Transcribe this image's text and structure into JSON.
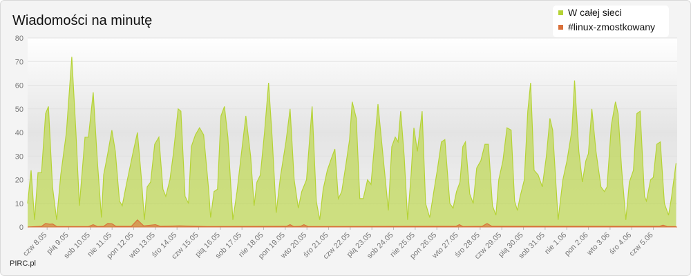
{
  "chart_data": {
    "type": "area",
    "title": "Wiadomości na minutę",
    "source": "PIRC.pl",
    "xlim": [
      0.1,
      30.1
    ],
    "xticks": [
      {
        "value": 1,
        "label": "czw 8.05"
      },
      {
        "value": 2,
        "label": "pią 9.05"
      },
      {
        "value": 3,
        "label": "sob 10.05"
      },
      {
        "value": 4,
        "label": "nie 11.05"
      },
      {
        "value": 5,
        "label": "pon 12.05"
      },
      {
        "value": 6,
        "label": "wto 13.05"
      },
      {
        "value": 7,
        "label": "śro 14.05"
      },
      {
        "value": 8,
        "label": "czw 15.05"
      },
      {
        "value": 9,
        "label": "pią 16.05"
      },
      {
        "value": 10,
        "label": "sob 17.05"
      },
      {
        "value": 11,
        "label": "nie 18.05"
      },
      {
        "value": 12,
        "label": "pon 19.05"
      },
      {
        "value": 13,
        "label": "wto 20.05"
      },
      {
        "value": 14,
        "label": "śro 21.05"
      },
      {
        "value": 15,
        "label": "czw 22.05"
      },
      {
        "value": 16,
        "label": "pią 23.05"
      },
      {
        "value": 17,
        "label": "sob 24.05"
      },
      {
        "value": 18,
        "label": "nie 25.05"
      },
      {
        "value": 19,
        "label": "pon 26.05"
      },
      {
        "value": 20,
        "label": "wto 27.05"
      },
      {
        "value": 21,
        "label": "śro 28.05"
      },
      {
        "value": 22,
        "label": "czw 29.05"
      },
      {
        "value": 23,
        "label": "pią 30.05"
      },
      {
        "value": 24,
        "label": "sob 31.05"
      },
      {
        "value": 25,
        "label": "nie 1.06"
      },
      {
        "value": 26,
        "label": "pon 2.06"
      },
      {
        "value": 27,
        "label": "wto 3.06"
      },
      {
        "value": 28,
        "label": "śro 4.06"
      },
      {
        "value": 29,
        "label": "czw 5.06"
      }
    ],
    "ylim": [
      0,
      80
    ],
    "yticks": [
      0,
      10,
      20,
      30,
      40,
      50,
      60,
      70,
      80
    ],
    "grid": true,
    "legend": "top-right",
    "series": [
      {
        "name": "W całej sieci",
        "color": "#b5d335",
        "x": [
          0.1,
          0.26,
          0.42,
          0.58,
          0.74,
          0.93,
          1.06,
          1.25,
          1.44,
          1.63,
          1.89,
          2.14,
          2.33,
          2.49,
          2.75,
          2.91,
          3.13,
          3.32,
          3.51,
          3.61,
          3.8,
          3.99,
          4.15,
          4.34,
          4.47,
          4.66,
          4.98,
          5.17,
          5.36,
          5.49,
          5.62,
          5.78,
          5.97,
          6.16,
          6.35,
          6.48,
          6.67,
          6.83,
          7.05,
          7.18,
          7.37,
          7.53,
          7.66,
          7.85,
          8.04,
          8.23,
          8.46,
          8.55,
          8.71,
          8.87,
          9.03,
          9.19,
          9.35,
          9.58,
          9.77,
          9.96,
          10.18,
          10.4,
          10.56,
          10.69,
          10.85,
          11.04,
          11.23,
          11.39,
          11.58,
          11.77,
          12.03,
          12.22,
          12.41,
          12.6,
          12.76,
          12.98,
          13.24,
          13.43,
          13.59,
          13.75,
          13.94,
          14.13,
          14.29,
          14.45,
          14.61,
          14.81,
          14.97,
          15.09,
          15.28,
          15.44,
          15.6,
          15.8,
          15.96,
          16.12,
          16.28,
          16.44,
          16.6,
          16.76,
          16.92,
          17.08,
          17.21,
          17.33,
          17.49,
          17.65,
          17.81,
          17.94,
          18.1,
          18.32,
          18.48,
          18.67,
          18.86,
          19.02,
          19.21,
          19.37,
          19.6,
          19.75,
          19.91,
          20.07,
          20.2,
          20.32,
          20.52,
          20.68,
          20.84,
          21.03,
          21.22,
          21.38,
          21.57,
          21.73,
          21.86,
          22.05,
          22.24,
          22.43,
          22.59,
          22.72,
          22.85,
          23.04,
          23.2,
          23.33,
          23.49,
          23.68,
          23.87,
          24.06,
          24.22,
          24.35,
          24.6,
          24.82,
          25.01,
          25.24,
          25.36,
          25.56,
          25.72,
          25.88,
          26.0,
          26.16,
          26.35,
          26.58,
          26.74,
          26.86,
          27.06,
          27.25,
          27.37,
          27.53,
          27.73,
          27.89,
          28.08,
          28.24,
          28.39,
          28.59,
          28.68,
          28.87,
          29.0,
          29.16,
          29.32,
          29.51,
          29.7,
          29.83,
          30.05
        ],
        "values": [
          10,
          24,
          3,
          23,
          23,
          48,
          51,
          17,
          3,
          22,
          40,
          72,
          40,
          9,
          38,
          38,
          57,
          28,
          4,
          22,
          31,
          41,
          32,
          11,
          9,
          18,
          32,
          40,
          20,
          3,
          17,
          19,
          35,
          38,
          16,
          13,
          20,
          31,
          50,
          49,
          13,
          10,
          34,
          39,
          42,
          39,
          16,
          4,
          15,
          16,
          47,
          51,
          38,
          3,
          15,
          30,
          47,
          30,
          9,
          19,
          22,
          40,
          61,
          38,
          6,
          21,
          36,
          50,
          20,
          8,
          15,
          20,
          51,
          11,
          3,
          16,
          24,
          29,
          33,
          12,
          15,
          27,
          37,
          53,
          46,
          12,
          12,
          20,
          18,
          35,
          52,
          37,
          22,
          7,
          34,
          38,
          36,
          49,
          30,
          3,
          22,
          42,
          32,
          49,
          10,
          4,
          15,
          24,
          36,
          37,
          10,
          8,
          15,
          19,
          34,
          36,
          14,
          10,
          25,
          28,
          35,
          35,
          9,
          5,
          20,
          28,
          42,
          41,
          11,
          7,
          13,
          20,
          49,
          61,
          24,
          22,
          17,
          30,
          46,
          41,
          3,
          20,
          28,
          41,
          62,
          32,
          19,
          28,
          31,
          50,
          32,
          17,
          15,
          17,
          43,
          53,
          48,
          25,
          3,
          19,
          24,
          48,
          49,
          13,
          11,
          20,
          21,
          35,
          36,
          10,
          5,
          12,
          27
        ]
      },
      {
        "name": "#linux-zmostkowany",
        "color": "#d9703a",
        "x": [
          0.1,
          0.74,
          0.93,
          1.12,
          1.25,
          1.44,
          2.91,
          3.13,
          3.32,
          3.61,
          3.8,
          3.99,
          4.18,
          4.89,
          5.17,
          5.46,
          5.78,
          6.0,
          6.22,
          7.12,
          8.39,
          12.06,
          12.22,
          12.38,
          12.7,
          12.86,
          13.05,
          19.88,
          20.04,
          20.2,
          21.09,
          21.32,
          21.54,
          23.07,
          29.29,
          29.45,
          29.64,
          30.05
        ],
        "values": [
          0,
          0.3,
          1.5,
          1.2,
          1.3,
          0.2,
          0.2,
          1,
          0.2,
          0.3,
          1.5,
          1.4,
          0.3,
          0.3,
          3,
          0.5,
          0.8,
          1,
          0.3,
          0.5,
          0.2,
          0.3,
          1,
          0.2,
          0.3,
          1,
          0.2,
          0.3,
          1,
          0.2,
          0.3,
          1.5,
          0.3,
          0.3,
          0.3,
          0.8,
          0.2,
          0.2
        ]
      }
    ]
  }
}
